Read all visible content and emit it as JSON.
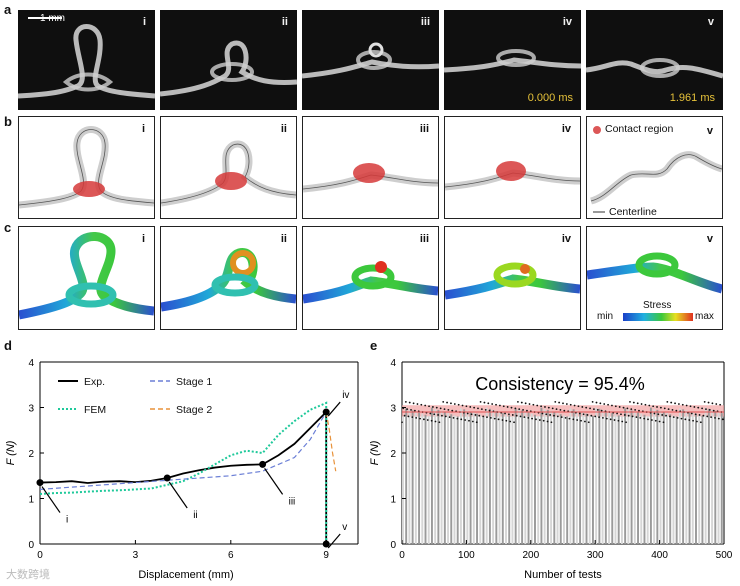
{
  "panel_labels": {
    "a": "a",
    "b": "b",
    "c": "c",
    "d": "d",
    "e": "e"
  },
  "stages": [
    "i",
    "ii",
    "iii",
    "iv",
    "v"
  ],
  "row_a": {
    "scale_bar": "1 mm",
    "time_iv": "0.000 ms",
    "time_v": "1.961 ms",
    "time_color": "#e6c23a"
  },
  "row_b": {
    "legend_contact": "Contact region",
    "legend_centerline": "Centerline",
    "contact_color": "#d63a3a"
  },
  "row_c": {
    "legend_title": "Stress",
    "legend_min": "min",
    "legend_max": "max"
  },
  "chart_d": {
    "type": "line",
    "xlabel": "Displacement (mm)",
    "ylabel": "F (N)",
    "xlim": [
      0,
      10
    ],
    "ylim": [
      0,
      4
    ],
    "xticks": [
      "0",
      "3",
      "6",
      "9"
    ],
    "yticks": [
      "0",
      "1",
      "2",
      "3",
      "4"
    ],
    "legend": {
      "exp": "Exp.",
      "fem": "FEM",
      "stage1": "Stage 1",
      "stage2": "Stage 2"
    },
    "markers": [
      {
        "label": "i",
        "x": 0,
        "y": 1.35
      },
      {
        "label": "ii",
        "x": 4.0,
        "y": 1.45
      },
      {
        "label": "iii",
        "x": 7.0,
        "y": 1.75
      },
      {
        "label": "iv",
        "x": 9.0,
        "y": 2.9
      },
      {
        "label": "v",
        "x": 9.0,
        "y": 0.0
      }
    ],
    "series": [
      {
        "name": "Exp.",
        "color": "#000000",
        "x": [
          0,
          0.5,
          1,
          1.5,
          2,
          2.5,
          3,
          3.5,
          4,
          4.5,
          5,
          5.5,
          6,
          6.5,
          7,
          7.5,
          8,
          8.5,
          9,
          9.0
        ],
        "y": [
          1.35,
          1.36,
          1.38,
          1.34,
          1.37,
          1.38,
          1.36,
          1.39,
          1.45,
          1.55,
          1.62,
          1.68,
          1.72,
          1.74,
          1.75,
          1.95,
          2.2,
          2.55,
          2.9,
          0.0
        ]
      },
      {
        "name": "FEM",
        "color": "#1ec99a",
        "x": [
          0,
          0.5,
          1,
          1.5,
          2,
          2.5,
          3,
          3.5,
          4,
          4.5,
          5,
          5.5,
          6,
          6.5,
          7,
          7.5,
          8,
          8.5,
          9,
          9.0
        ],
        "y": [
          1.1,
          1.12,
          1.13,
          1.15,
          1.17,
          1.18,
          1.2,
          1.22,
          1.3,
          1.38,
          1.55,
          1.75,
          1.95,
          2.05,
          2.0,
          2.4,
          2.7,
          2.95,
          3.1,
          0.0
        ]
      },
      {
        "name": "Stage 1",
        "color": "#6b7fd6",
        "x": [
          0,
          2,
          4,
          6,
          7,
          8,
          8.5,
          9
        ],
        "y": [
          1.2,
          1.3,
          1.4,
          1.5,
          1.6,
          1.9,
          2.3,
          2.9
        ]
      },
      {
        "name": "Stage 2",
        "color": "#e8923a",
        "x": [
          9.0,
          9.1,
          9.2,
          9.3
        ],
        "y": [
          2.9,
          2.5,
          2.0,
          1.6
        ]
      }
    ]
  },
  "chart_e": {
    "type": "bar",
    "title": "Consistency = 95.4%",
    "xlabel": "Number of tests",
    "ylabel": "F (N)",
    "xlim": [
      0,
      500
    ],
    "ylim": [
      0,
      4
    ],
    "xticks": [
      "0",
      "100",
      "200",
      "300",
      "400",
      "500"
    ],
    "yticks": [
      "0",
      "1",
      "2",
      "3",
      "4"
    ],
    "mean": 2.9,
    "band": [
      2.8,
      3.05
    ],
    "band_color": "#f2a3a3",
    "n_tests": 500
  },
  "watermark": "大数跨境"
}
